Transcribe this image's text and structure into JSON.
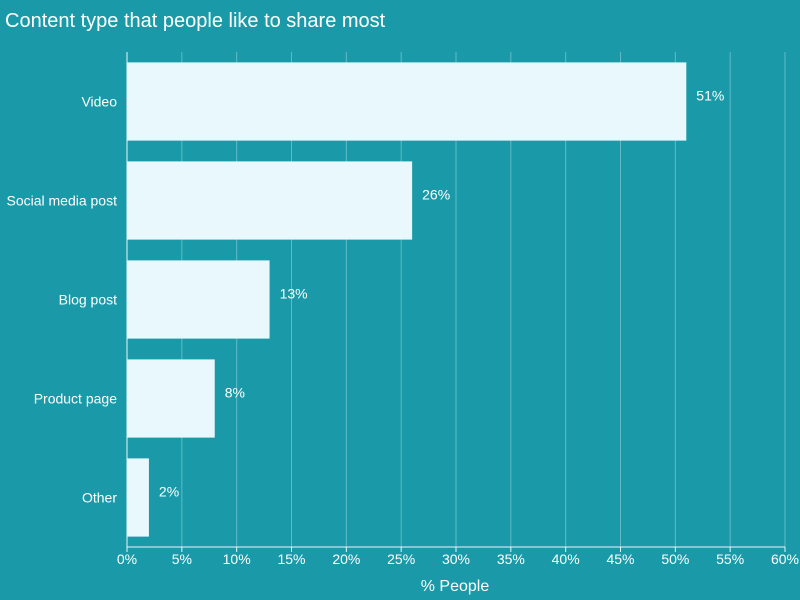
{
  "chart_data": {
    "type": "bar",
    "orientation": "horizontal",
    "title": "Content type that people like to share most",
    "xlabel": "% People",
    "ylabel": "",
    "categories": [
      "Video",
      "Social media post",
      "Blog post",
      "Product page",
      "Other"
    ],
    "values": [
      51,
      26,
      13,
      8,
      2
    ],
    "data_labels": [
      "51%",
      "26%",
      "13%",
      "8%",
      "2%"
    ],
    "xlim": [
      0,
      60
    ],
    "xticks": [
      0,
      5,
      10,
      15,
      20,
      25,
      30,
      35,
      40,
      45,
      50,
      55,
      60
    ],
    "xtick_labels": [
      "0%",
      "5%",
      "10%",
      "15%",
      "20%",
      "25%",
      "30%",
      "35%",
      "40%",
      "45%",
      "50%",
      "55%",
      "60%"
    ],
    "grid": true,
    "legend": "none"
  },
  "colors": {
    "background": "#1a9aa8",
    "bar": "#e8f8fc",
    "text": "#ffffff",
    "grid": "#5fbcc6",
    "axis": "#e8f8fc"
  }
}
